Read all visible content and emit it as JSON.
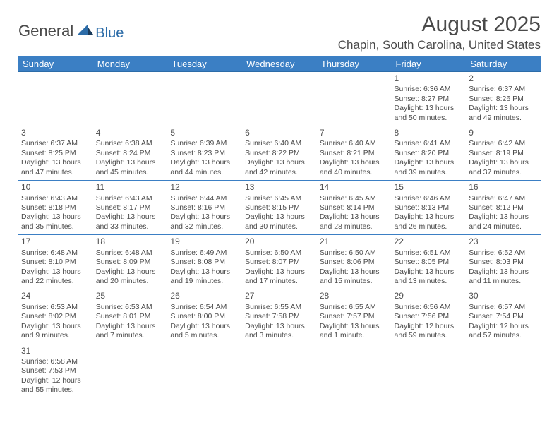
{
  "logo": {
    "general": "General",
    "blue": "Blue"
  },
  "title": "August 2025",
  "location": "Chapin, South Carolina, United States",
  "colors": {
    "header_bg": "#3b7fc4",
    "header_text": "#ffffff",
    "cell_border": "#3b7fc4",
    "body_text": "#4c4c4c",
    "logo_blue": "#2c6ca8",
    "logo_dark": "#1a3a5a"
  },
  "weekdays": [
    "Sunday",
    "Monday",
    "Tuesday",
    "Wednesday",
    "Thursday",
    "Friday",
    "Saturday"
  ],
  "weeks": [
    [
      null,
      null,
      null,
      null,
      null,
      {
        "n": "1",
        "sr": "Sunrise: 6:36 AM",
        "ss": "Sunset: 8:27 PM",
        "d1": "Daylight: 13 hours",
        "d2": "and 50 minutes."
      },
      {
        "n": "2",
        "sr": "Sunrise: 6:37 AM",
        "ss": "Sunset: 8:26 PM",
        "d1": "Daylight: 13 hours",
        "d2": "and 49 minutes."
      }
    ],
    [
      {
        "n": "3",
        "sr": "Sunrise: 6:37 AM",
        "ss": "Sunset: 8:25 PM",
        "d1": "Daylight: 13 hours",
        "d2": "and 47 minutes."
      },
      {
        "n": "4",
        "sr": "Sunrise: 6:38 AM",
        "ss": "Sunset: 8:24 PM",
        "d1": "Daylight: 13 hours",
        "d2": "and 45 minutes."
      },
      {
        "n": "5",
        "sr": "Sunrise: 6:39 AM",
        "ss": "Sunset: 8:23 PM",
        "d1": "Daylight: 13 hours",
        "d2": "and 44 minutes."
      },
      {
        "n": "6",
        "sr": "Sunrise: 6:40 AM",
        "ss": "Sunset: 8:22 PM",
        "d1": "Daylight: 13 hours",
        "d2": "and 42 minutes."
      },
      {
        "n": "7",
        "sr": "Sunrise: 6:40 AM",
        "ss": "Sunset: 8:21 PM",
        "d1": "Daylight: 13 hours",
        "d2": "and 40 minutes."
      },
      {
        "n": "8",
        "sr": "Sunrise: 6:41 AM",
        "ss": "Sunset: 8:20 PM",
        "d1": "Daylight: 13 hours",
        "d2": "and 39 minutes."
      },
      {
        "n": "9",
        "sr": "Sunrise: 6:42 AM",
        "ss": "Sunset: 8:19 PM",
        "d1": "Daylight: 13 hours",
        "d2": "and 37 minutes."
      }
    ],
    [
      {
        "n": "10",
        "sr": "Sunrise: 6:43 AM",
        "ss": "Sunset: 8:18 PM",
        "d1": "Daylight: 13 hours",
        "d2": "and 35 minutes."
      },
      {
        "n": "11",
        "sr": "Sunrise: 6:43 AM",
        "ss": "Sunset: 8:17 PM",
        "d1": "Daylight: 13 hours",
        "d2": "and 33 minutes."
      },
      {
        "n": "12",
        "sr": "Sunrise: 6:44 AM",
        "ss": "Sunset: 8:16 PM",
        "d1": "Daylight: 13 hours",
        "d2": "and 32 minutes."
      },
      {
        "n": "13",
        "sr": "Sunrise: 6:45 AM",
        "ss": "Sunset: 8:15 PM",
        "d1": "Daylight: 13 hours",
        "d2": "and 30 minutes."
      },
      {
        "n": "14",
        "sr": "Sunrise: 6:45 AM",
        "ss": "Sunset: 8:14 PM",
        "d1": "Daylight: 13 hours",
        "d2": "and 28 minutes."
      },
      {
        "n": "15",
        "sr": "Sunrise: 6:46 AM",
        "ss": "Sunset: 8:13 PM",
        "d1": "Daylight: 13 hours",
        "d2": "and 26 minutes."
      },
      {
        "n": "16",
        "sr": "Sunrise: 6:47 AM",
        "ss": "Sunset: 8:12 PM",
        "d1": "Daylight: 13 hours",
        "d2": "and 24 minutes."
      }
    ],
    [
      {
        "n": "17",
        "sr": "Sunrise: 6:48 AM",
        "ss": "Sunset: 8:10 PM",
        "d1": "Daylight: 13 hours",
        "d2": "and 22 minutes."
      },
      {
        "n": "18",
        "sr": "Sunrise: 6:48 AM",
        "ss": "Sunset: 8:09 PM",
        "d1": "Daylight: 13 hours",
        "d2": "and 20 minutes."
      },
      {
        "n": "19",
        "sr": "Sunrise: 6:49 AM",
        "ss": "Sunset: 8:08 PM",
        "d1": "Daylight: 13 hours",
        "d2": "and 19 minutes."
      },
      {
        "n": "20",
        "sr": "Sunrise: 6:50 AM",
        "ss": "Sunset: 8:07 PM",
        "d1": "Daylight: 13 hours",
        "d2": "and 17 minutes."
      },
      {
        "n": "21",
        "sr": "Sunrise: 6:50 AM",
        "ss": "Sunset: 8:06 PM",
        "d1": "Daylight: 13 hours",
        "d2": "and 15 minutes."
      },
      {
        "n": "22",
        "sr": "Sunrise: 6:51 AM",
        "ss": "Sunset: 8:05 PM",
        "d1": "Daylight: 13 hours",
        "d2": "and 13 minutes."
      },
      {
        "n": "23",
        "sr": "Sunrise: 6:52 AM",
        "ss": "Sunset: 8:03 PM",
        "d1": "Daylight: 13 hours",
        "d2": "and 11 minutes."
      }
    ],
    [
      {
        "n": "24",
        "sr": "Sunrise: 6:53 AM",
        "ss": "Sunset: 8:02 PM",
        "d1": "Daylight: 13 hours",
        "d2": "and 9 minutes."
      },
      {
        "n": "25",
        "sr": "Sunrise: 6:53 AM",
        "ss": "Sunset: 8:01 PM",
        "d1": "Daylight: 13 hours",
        "d2": "and 7 minutes."
      },
      {
        "n": "26",
        "sr": "Sunrise: 6:54 AM",
        "ss": "Sunset: 8:00 PM",
        "d1": "Daylight: 13 hours",
        "d2": "and 5 minutes."
      },
      {
        "n": "27",
        "sr": "Sunrise: 6:55 AM",
        "ss": "Sunset: 7:58 PM",
        "d1": "Daylight: 13 hours",
        "d2": "and 3 minutes."
      },
      {
        "n": "28",
        "sr": "Sunrise: 6:55 AM",
        "ss": "Sunset: 7:57 PM",
        "d1": "Daylight: 13 hours",
        "d2": "and 1 minute."
      },
      {
        "n": "29",
        "sr": "Sunrise: 6:56 AM",
        "ss": "Sunset: 7:56 PM",
        "d1": "Daylight: 12 hours",
        "d2": "and 59 minutes."
      },
      {
        "n": "30",
        "sr": "Sunrise: 6:57 AM",
        "ss": "Sunset: 7:54 PM",
        "d1": "Daylight: 12 hours",
        "d2": "and 57 minutes."
      }
    ],
    [
      {
        "n": "31",
        "sr": "Sunrise: 6:58 AM",
        "ss": "Sunset: 7:53 PM",
        "d1": "Daylight: 12 hours",
        "d2": "and 55 minutes."
      },
      null,
      null,
      null,
      null,
      null,
      null
    ]
  ]
}
